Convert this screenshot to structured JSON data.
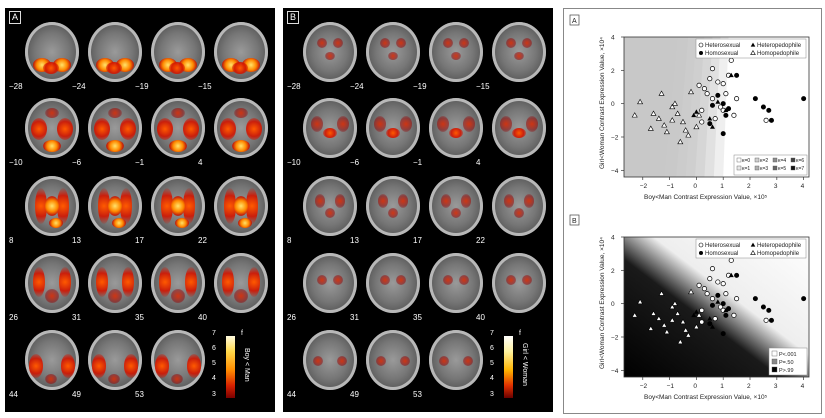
{
  "panel_a": {
    "label": "A",
    "slices": [
      "−28",
      "−24",
      "−19",
      "−15",
      "−10",
      "−6",
      "−1",
      "4",
      "8",
      "13",
      "17",
      "22",
      "26",
      "31",
      "35",
      "40",
      "44",
      "49",
      "53"
    ],
    "colorbar": {
      "ticks": [
        "7",
        "6",
        "5",
        "4",
        "3"
      ],
      "title": "Boy < Man",
      "top_icon": "f"
    }
  },
  "panel_b": {
    "label": "B",
    "slices": [
      "−28",
      "−24",
      "−19",
      "−15",
      "−10",
      "−6",
      "−1",
      "4",
      "8",
      "13",
      "17",
      "22",
      "26",
      "31",
      "35",
      "40",
      "44",
      "49",
      "53"
    ],
    "colorbar": {
      "ticks": [
        "7",
        "6",
        "5",
        "4",
        "3"
      ],
      "title": "Girl < Woman",
      "top_icon": "f"
    }
  },
  "chart_data": [
    {
      "type": "scatter",
      "panel_label": "A",
      "xlabel": "Boy<Man Contrast Expression Value, ×10⁵",
      "ylabel": "Girl<Woman Contrast Expression Value, ×10⁴",
      "xlim": [
        -2.7,
        4.2
      ],
      "ylim": [
        -4.4,
        4
      ],
      "xticks": [
        "−2",
        "−1",
        "0",
        "1",
        "2",
        "3",
        "4"
      ],
      "yticks": [
        "4",
        "2",
        "0",
        "−2",
        "−4"
      ],
      "legend_groups": [
        "Heterosexual",
        "Heteropedophile",
        "Homosexual",
        "Homopedophile"
      ],
      "shade_legend": [
        "κ=0",
        "κ=1",
        "κ=2",
        "κ=3",
        "κ=4",
        "κ=5",
        "κ=6",
        "κ=7"
      ],
      "series": [
        {
          "name": "Heterosexual",
          "marker": "open-circle",
          "x": [
            0.1,
            0.3,
            0.5,
            0.6,
            0.8,
            1.0,
            1.1,
            1.2,
            1.3,
            0.2,
            0.4,
            0.9,
            1.5,
            2.6,
            0.7,
            1.0,
            0.2,
            1.4,
            0.6
          ],
          "y": [
            1.1,
            0.9,
            1.5,
            2.1,
            1.3,
            1.2,
            0.6,
            1.7,
            2.6,
            -0.4,
            0.6,
            -0.2,
            0.3,
            -1.0,
            -0.9,
            -0.4,
            -1.1,
            -0.7,
            0.3
          ]
        },
        {
          "name": "Homosexual",
          "marker": "filled-circle",
          "x": [
            0.6,
            0.8,
            1.0,
            1.2,
            1.5,
            2.2,
            2.5,
            2.7,
            4.0,
            1.1,
            0.5,
            1.0,
            2.8
          ],
          "y": [
            -0.1,
            0.5,
            0.0,
            -0.3,
            1.7,
            0.3,
            -0.2,
            -0.4,
            0.3,
            -0.7,
            -1.2,
            -1.8,
            -1.0
          ]
        },
        {
          "name": "Heteropedophile",
          "marker": "filled-triangle",
          "x": [
            0.0,
            0.5,
            1.1,
            1.3,
            0.6,
            -0.1,
            0.8
          ],
          "y": [
            -0.5,
            -0.9,
            -0.4,
            1.7,
            -1.4,
            -0.7,
            0.1
          ]
        },
        {
          "name": "Homopedophile",
          "marker": "open-triangle",
          "x": [
            -2.3,
            -2.1,
            -1.7,
            -1.6,
            -1.4,
            -1.2,
            -1.1,
            -0.9,
            -0.8,
            -0.7,
            -0.5,
            -0.4,
            -0.3,
            -0.2,
            0.0,
            0.1,
            -0.6,
            -0.9,
            -1.3
          ],
          "y": [
            -0.7,
            0.1,
            -1.5,
            -0.6,
            -0.9,
            -1.3,
            -1.7,
            -0.2,
            0.0,
            -0.6,
            -1.1,
            -1.6,
            -1.9,
            0.7,
            -1.4,
            -0.7,
            -2.3,
            -1.0,
            0.6
          ]
        }
      ]
    },
    {
      "type": "scatter",
      "panel_label": "B",
      "xlabel": "Boy<Man Contrast Expression Value, ×10⁵",
      "ylabel": "Girl<Woman Contrast Expression Value, ×10⁴",
      "xlim": [
        -2.7,
        4.2
      ],
      "ylim": [
        -4.4,
        4
      ],
      "xticks": [
        "−2",
        "−1",
        "0",
        "1",
        "2",
        "3",
        "4"
      ],
      "yticks": [
        "4",
        "2",
        "0",
        "−2",
        "−4"
      ],
      "legend_groups": [
        "Heterosexual",
        "Heteropedophile",
        "Homosexual",
        "Homopedophile"
      ],
      "shade_legend": [
        "P<.001",
        "P=.50",
        "P>.99"
      ],
      "series_same_as": "A"
    }
  ]
}
